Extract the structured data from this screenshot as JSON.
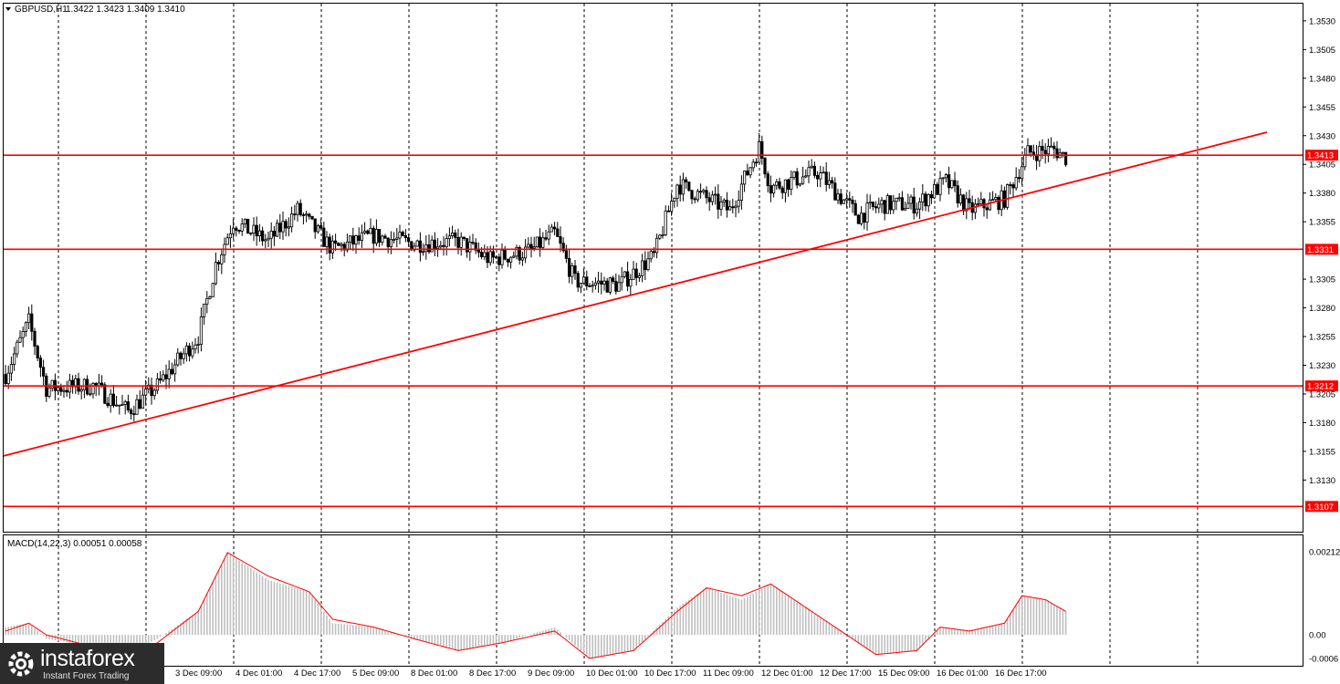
{
  "header": {
    "symbol": "GBPUSD,H1",
    "ohlc": "1.3422 1.3423 1.3409 1.3410"
  },
  "macd": {
    "label": "MACD(14,22,3) 0.00051 0.00058"
  },
  "logo": {
    "brand": "instaforex",
    "tagline": "Instant Forex Trading"
  },
  "colors": {
    "level": "#ff0000",
    "trend": "#ff0000",
    "macd_hist": "#c0c0c0",
    "macd_signal": "#ff0000",
    "grid": "#000000"
  },
  "chart_data": {
    "type": "candlestick",
    "symbol": "GBPUSD",
    "timeframe": "H1",
    "ylim": [
      1.3085,
      1.3545
    ],
    "price_ticks": [
      "1.3530",
      "1.3505",
      "1.3480",
      "1.3455",
      "1.3430",
      "1.3405",
      "1.3380",
      "1.3355",
      "1.3305",
      "1.3280",
      "1.3255",
      "1.3230",
      "1.3205",
      "1.3180",
      "1.3155",
      "1.3130"
    ],
    "x_labels": [
      "3 Dec 09:00",
      "4 Dec 01:00",
      "4 Dec 17:00",
      "5 Dec 09:00",
      "8 Dec 01:00",
      "8 Dec 17:00",
      "9 Dec 09:00",
      "10 Dec 01:00",
      "10 Dec 17:00",
      "11 Dec 09:00",
      "12 Dec 01:00",
      "12 Dec 17:00",
      "15 Dec 09:00",
      "16 Dec 01:00",
      "16 Dec 17:00"
    ],
    "levels": [
      {
        "label": "1.3413",
        "value": 1.3413
      },
      {
        "label": "1.3331",
        "value": 1.3331
      },
      {
        "label": "1.3212",
        "value": 1.3212
      },
      {
        "label": "1.3107",
        "value": 1.3107
      }
    ],
    "trendline": {
      "from": 1.3151,
      "to": 1.3433
    },
    "price_path": [
      [
        0,
        1.3222
      ],
      [
        8,
        1.3268
      ],
      [
        14,
        1.321
      ],
      [
        30,
        1.3212
      ],
      [
        42,
        1.319
      ],
      [
        52,
        1.3212
      ],
      [
        66,
        1.3255
      ],
      [
        72,
        1.3318
      ],
      [
        78,
        1.3355
      ],
      [
        90,
        1.3338
      ],
      [
        100,
        1.3365
      ],
      [
        112,
        1.3331
      ],
      [
        126,
        1.3343
      ],
      [
        140,
        1.3336
      ],
      [
        155,
        1.3338
      ],
      [
        166,
        1.3322
      ],
      [
        180,
        1.333
      ],
      [
        188,
        1.3345
      ],
      [
        195,
        1.3303
      ],
      [
        210,
        1.33
      ],
      [
        222,
        1.3325
      ],
      [
        230,
        1.3388
      ],
      [
        248,
        1.3365
      ],
      [
        258,
        1.342
      ],
      [
        262,
        1.3385
      ],
      [
        278,
        1.3398
      ],
      [
        292,
        1.336
      ],
      [
        300,
        1.337
      ],
      [
        312,
        1.337
      ],
      [
        322,
        1.339
      ],
      [
        330,
        1.3365
      ],
      [
        342,
        1.3375
      ],
      [
        350,
        1.3415
      ],
      [
        359,
        1.3418
      ],
      [
        363,
        1.3411
      ]
    ],
    "macd": {
      "ylim": [
        -0.0006,
        0.0024
      ],
      "ticks": [
        "0.00212",
        "0.00",
        "-0.0006"
      ],
      "histogram_path": [
        [
          0,
          0.0002
        ],
        [
          8,
          0.0003
        ],
        [
          14,
          -0.0001
        ],
        [
          30,
          -0.0003
        ],
        [
          42,
          -0.0005
        ],
        [
          52,
          -0.0001
        ],
        [
          66,
          0.0006
        ],
        [
          76,
          0.0021
        ],
        [
          90,
          0.0014
        ],
        [
          104,
          0.0011
        ],
        [
          112,
          0.0003
        ],
        [
          126,
          0.0002
        ],
        [
          140,
          -0.0001
        ],
        [
          155,
          -0.0004
        ],
        [
          170,
          -0.0002
        ],
        [
          188,
          0.0002
        ],
        [
          200,
          -0.0006
        ],
        [
          215,
          -0.0004
        ],
        [
          230,
          0.0007
        ],
        [
          240,
          0.0012
        ],
        [
          252,
          0.0009
        ],
        [
          262,
          0.0013
        ],
        [
          280,
          0.0004
        ],
        [
          298,
          -0.0005
        ],
        [
          312,
          -0.0004
        ],
        [
          320,
          0.0002
        ],
        [
          330,
          0.0001
        ],
        [
          342,
          0.0003
        ],
        [
          348,
          0.001
        ],
        [
          356,
          0.0009
        ],
        [
          363,
          0.0006
        ]
      ],
      "signal_path": [
        [
          0,
          0.0001
        ],
        [
          8,
          0.0003
        ],
        [
          14,
          0.0
        ],
        [
          30,
          -0.0003
        ],
        [
          42,
          -0.0005
        ],
        [
          52,
          -0.0002
        ],
        [
          66,
          0.0006
        ],
        [
          76,
          0.0021
        ],
        [
          90,
          0.0015
        ],
        [
          104,
          0.0011
        ],
        [
          112,
          0.0004
        ],
        [
          126,
          0.0002
        ],
        [
          140,
          -0.0001
        ],
        [
          155,
          -0.0004
        ],
        [
          170,
          -0.0002
        ],
        [
          188,
          0.0001
        ],
        [
          200,
          -0.0006
        ],
        [
          215,
          -0.0004
        ],
        [
          230,
          0.0006
        ],
        [
          240,
          0.0012
        ],
        [
          252,
          0.001
        ],
        [
          262,
          0.0013
        ],
        [
          280,
          0.0004
        ],
        [
          298,
          -0.0005
        ],
        [
          312,
          -0.0004
        ],
        [
          320,
          0.0002
        ],
        [
          330,
          0.0001
        ],
        [
          342,
          0.0003
        ],
        [
          348,
          0.001
        ],
        [
          356,
          0.0009
        ],
        [
          363,
          0.0006
        ]
      ]
    }
  }
}
